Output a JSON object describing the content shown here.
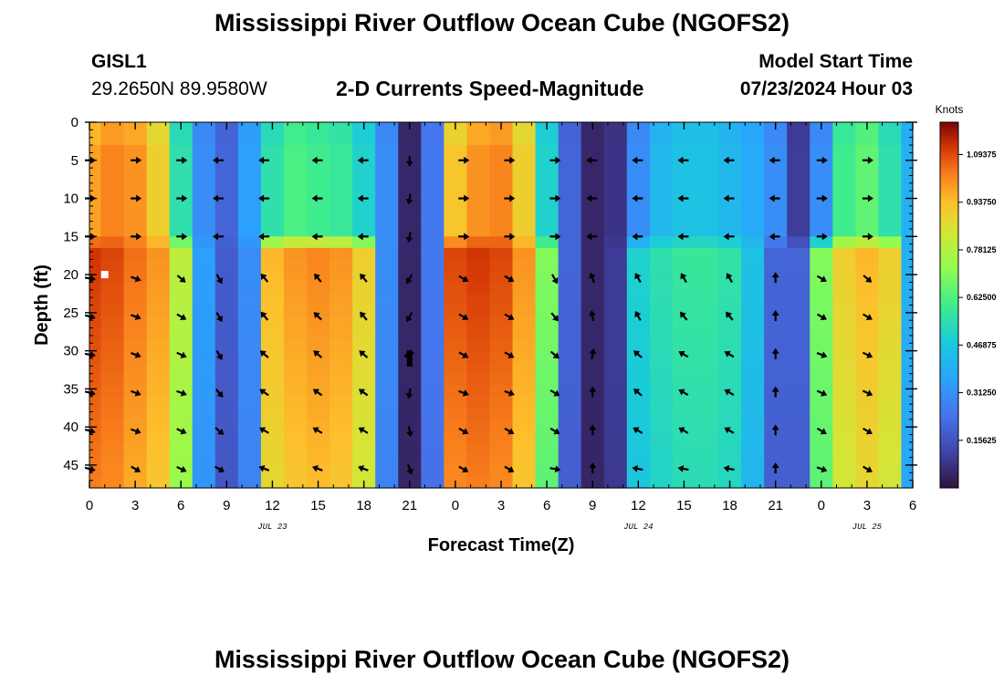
{
  "page": {
    "title_top": "Mississippi River Outflow Ocean Cube (NGOFS2)",
    "title_bottom": "Mississippi River Outflow Ocean Cube (NGOFS2)"
  },
  "station": {
    "id": "GISL1",
    "coords": "29.2650N  89.9580W"
  },
  "model": {
    "start_label": "Model Start Time",
    "start_value": "07/23/2024 Hour 03"
  },
  "chart_data": {
    "type": "heatmap",
    "subtitle": "2-D Currents Speed-Magnitude",
    "xlabel": "Forecast Time(Z)",
    "ylabel": "Depth (ft)",
    "x_tick_labels": [
      "0",
      "3",
      "6",
      "9",
      "12",
      "15",
      "18",
      "21",
      "0",
      "3",
      "6",
      "9",
      "12",
      "15",
      "18",
      "21",
      "0",
      "3",
      "6"
    ],
    "x_day_labels": [
      {
        "label": "JUL 23",
        "at_hour": 12
      },
      {
        "label": "JUL 24",
        "at_hour": 36
      },
      {
        "label": "JUL 25",
        "at_hour": 51
      }
    ],
    "x_range_hours": [
      0,
      54
    ],
    "y_ticks": [
      0,
      5,
      10,
      15,
      20,
      25,
      30,
      35,
      40,
      45
    ],
    "y_range_ft": [
      0,
      48
    ],
    "y_inverted": true,
    "colorbar": {
      "unit": "Knots",
      "range": [
        0,
        1.2
      ],
      "tick_values": [
        0.15625,
        0.3125,
        0.46875,
        0.625,
        0.78125,
        0.9375,
        1.09375
      ],
      "tick_labels": [
        "0.15625",
        "0.31250",
        "0.46875",
        "0.62500",
        "0.78125",
        "0.93750",
        "1.09375"
      ],
      "colormap": "turbo"
    },
    "grid": false,
    "markers": [
      {
        "type": "white-square",
        "hour": 1,
        "depth_ft": 20
      },
      {
        "type": "black-bar",
        "hour": 21,
        "depth_ft": 31
      }
    ],
    "speed_knots": {
      "x_hours": [
        0,
        1.5,
        3,
        4.5,
        6,
        7.5,
        9,
        10.5,
        12,
        13.5,
        15,
        16.5,
        18,
        19.5,
        21,
        22.5,
        24,
        25.5,
        27,
        28.5,
        30,
        31.5,
        33,
        34.5,
        36,
        37.5,
        39,
        40.5,
        42,
        43.5,
        45,
        46.5,
        48,
        49.5,
        51,
        52.5,
        54
      ],
      "surface_layer_0_15ft": [
        0.98,
        1.02,
        1.0,
        0.9,
        0.55,
        0.3,
        0.2,
        0.35,
        0.55,
        0.62,
        0.6,
        0.58,
        0.5,
        0.3,
        0.05,
        0.25,
        0.92,
        1.0,
        1.02,
        0.9,
        0.5,
        0.2,
        0.05,
        0.08,
        0.3,
        0.42,
        0.45,
        0.45,
        0.42,
        0.38,
        0.3,
        0.1,
        0.3,
        0.6,
        0.65,
        0.55,
        0.4
      ],
      "bottom_layer_15_48ft": [
        1.12,
        1.1,
        1.05,
        1.0,
        0.8,
        0.35,
        0.18,
        0.3,
        0.95,
        1.0,
        1.02,
        1.0,
        0.9,
        0.3,
        0.05,
        0.25,
        1.1,
        1.12,
        1.1,
        1.0,
        0.7,
        0.2,
        0.05,
        0.1,
        0.5,
        0.55,
        0.58,
        0.58,
        0.56,
        0.45,
        0.2,
        0.2,
        0.7,
        0.9,
        0.95,
        0.9,
        0.4
      ]
    },
    "arrow_columns_hours": [
      0,
      3,
      6,
      8.5,
      11.5,
      15,
      18,
      21,
      24.5,
      27.5,
      30.5,
      33,
      36,
      39,
      42,
      45,
      48,
      51
    ],
    "arrow_rows_ft": [
      5,
      10,
      15,
      20.5,
      25.5,
      30.5,
      35.5,
      40.5,
      45.5
    ],
    "arrow_dirs_deg": [
      [
        0,
        0,
        0,
        180,
        180,
        180,
        180,
        270,
        0,
        0,
        0,
        180,
        180,
        180,
        180,
        180,
        0,
        0
      ],
      [
        0,
        0,
        0,
        180,
        180,
        180,
        180,
        260,
        0,
        0,
        0,
        180,
        180,
        180,
        180,
        180,
        0,
        0
      ],
      [
        0,
        0,
        0,
        180,
        180,
        180,
        180,
        260,
        0,
        0,
        0,
        180,
        180,
        180,
        180,
        180,
        0,
        0
      ],
      [
        -10,
        -20,
        -40,
        -60,
        130,
        130,
        130,
        240,
        -30,
        -30,
        -60,
        110,
        120,
        120,
        120,
        90,
        -30,
        -40
      ],
      [
        -15,
        -20,
        -30,
        -60,
        130,
        135,
        130,
        240,
        -30,
        -30,
        -50,
        100,
        120,
        130,
        130,
        90,
        -30,
        -30
      ],
      [
        -10,
        -20,
        -25,
        -60,
        140,
        140,
        140,
        200,
        -30,
        -30,
        -40,
        80,
        140,
        150,
        150,
        90,
        -20,
        -25
      ],
      [
        -15,
        -20,
        -20,
        -50,
        145,
        145,
        145,
        260,
        -20,
        -20,
        -30,
        90,
        140,
        150,
        150,
        90,
        -25,
        -25
      ],
      [
        -15,
        -20,
        -25,
        -40,
        150,
        150,
        150,
        280,
        -30,
        -30,
        -30,
        90,
        150,
        150,
        150,
        90,
        -30,
        -30
      ],
      [
        -15,
        -30,
        -25,
        -30,
        160,
        160,
        160,
        -70,
        -30,
        -30,
        -10,
        90,
        170,
        170,
        170,
        90,
        -20,
        -30
      ]
    ]
  }
}
